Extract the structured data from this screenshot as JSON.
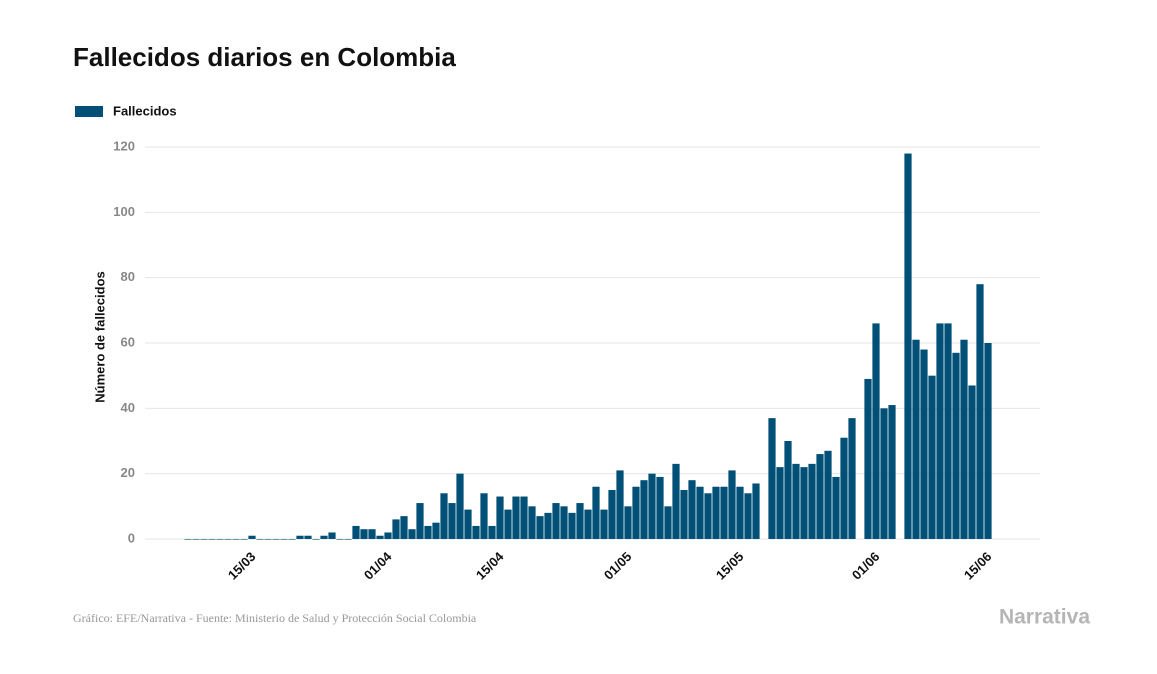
{
  "chart_data": {
    "type": "bar",
    "title": "Fallecidos diarios en Colombia",
    "y_label": "Número de fallecidos",
    "source": "Gráfico: EFE/Narrativa - Fuente: Ministerio de Salud y Protección Social Colombia",
    "brand": "Narrativa",
    "legend": "top-left",
    "grid": true,
    "categories": [
      null,
      null,
      null,
      null,
      null,
      null,
      null,
      null,
      "15/03",
      null,
      null,
      null,
      null,
      null,
      null,
      null,
      null,
      null,
      null,
      null,
      null,
      null,
      null,
      null,
      null,
      "01/04",
      null,
      null,
      null,
      null,
      null,
      null,
      null,
      null,
      null,
      null,
      null,
      null,
      null,
      "15/04",
      null,
      null,
      null,
      null,
      null,
      null,
      null,
      null,
      null,
      null,
      null,
      null,
      null,
      null,
      null,
      "01/05",
      null,
      null,
      null,
      null,
      null,
      null,
      null,
      null,
      null,
      null,
      null,
      null,
      null,
      "15/05",
      null,
      null,
      null,
      null,
      null,
      null,
      null,
      null,
      null,
      null,
      null,
      null,
      null,
      null,
      null,
      null,
      "01/06",
      null,
      null,
      null,
      null,
      null,
      null,
      null,
      null,
      null,
      null,
      null,
      null,
      null,
      "15/06"
    ],
    "series": [
      {
        "name": "Fallecidos",
        "color": "#004f76",
        "values": [
          0,
          0,
          0,
          0,
          0,
          0,
          0,
          0,
          1,
          0,
          0,
          0,
          0,
          0,
          1,
          1,
          0,
          1,
          2,
          0,
          0,
          4,
          3,
          3,
          1,
          2,
          6,
          7,
          3,
          11,
          4,
          5,
          14,
          11,
          20,
          9,
          4,
          14,
          4,
          13,
          9,
          13,
          13,
          10,
          7,
          8,
          11,
          10,
          8,
          11,
          9,
          16,
          9,
          15,
          21,
          10,
          16,
          18,
          20,
          19,
          10,
          23,
          15,
          18,
          16,
          14,
          16,
          16,
          21,
          16,
          14,
          17,
          null,
          37,
          22,
          30,
          23,
          22,
          23,
          26,
          27,
          19,
          31,
          37,
          null,
          49,
          66,
          40,
          41,
          null,
          118,
          61,
          58,
          50,
          66,
          66,
          57,
          61,
          47,
          78,
          60
        ]
      }
    ],
    "ylim": [
      0,
      120
    ],
    "yticks": [
      0,
      20,
      40,
      60,
      80,
      100,
      120
    ]
  }
}
